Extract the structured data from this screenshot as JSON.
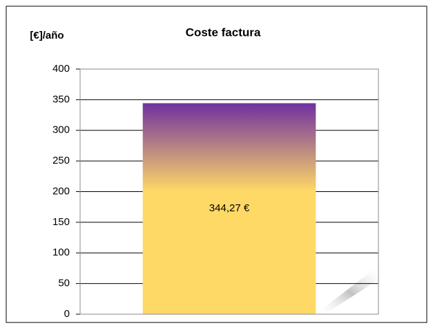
{
  "chart_data": {
    "type": "bar",
    "title": "Coste factura",
    "y_label": "[€]/año",
    "categories": [
      null
    ],
    "values": [
      344.27
    ],
    "value_labels": [
      "344,27 €"
    ],
    "color": "#ffd966",
    "gradient_top_color": "#7030a0",
    "ylim": [
      0,
      400
    ],
    "yticks": [
      0,
      50,
      100,
      150,
      200,
      250,
      300,
      350,
      400
    ],
    "grid": true
  }
}
